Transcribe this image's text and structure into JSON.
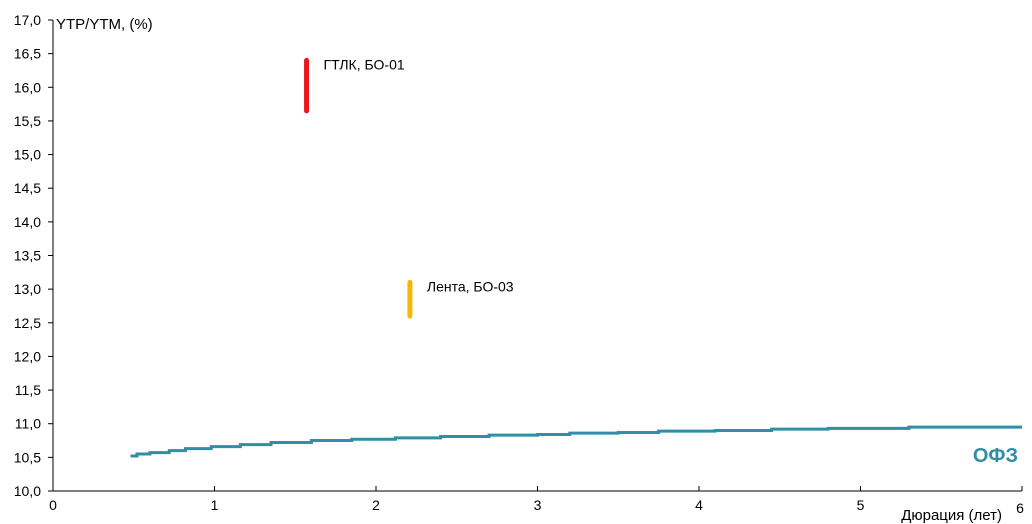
{
  "chart_data": {
    "type": "line",
    "title": "",
    "ylabel": "YTP/YTM, (%)",
    "xlabel": "Дюрация (лет)",
    "xlim": [
      0,
      6
    ],
    "ylim": [
      10.0,
      17.0
    ],
    "x_ticks": [
      "0",
      "1",
      "2",
      "3",
      "4",
      "5",
      "6"
    ],
    "y_ticks": [
      "10,0",
      "10,5",
      "11,0",
      "11,5",
      "12,0",
      "12,5",
      "13,0",
      "13,5",
      "14,0",
      "14,5",
      "15,0",
      "15,5",
      "16,0",
      "16,5",
      "17,0"
    ],
    "series": [
      {
        "name": "ОФЗ",
        "color": "#2f8fa6",
        "x": [
          0.48,
          0.52,
          0.6,
          0.72,
          0.82,
          0.98,
          1.16,
          1.35,
          1.6,
          1.85,
          2.12,
          2.4,
          2.7,
          3.0,
          3.2,
          3.5,
          3.75,
          4.1,
          4.45,
          4.8,
          5.05,
          5.3,
          5.6,
          6.0
        ],
        "y": [
          10.52,
          10.55,
          10.57,
          10.6,
          10.63,
          10.66,
          10.69,
          10.72,
          10.75,
          10.77,
          10.79,
          10.81,
          10.83,
          10.84,
          10.86,
          10.87,
          10.89,
          10.9,
          10.92,
          10.93,
          10.93,
          10.95,
          10.95,
          10.95
        ]
      }
    ],
    "ranges": [
      {
        "name": "ГТЛК, БО-01",
        "label": "ГТЛК, БО-01",
        "x": 1.57,
        "y_low": 15.65,
        "y_high": 16.4,
        "color": "#e8181c"
      },
      {
        "name": "Лента, БО-03",
        "label": "Лента, БО-03",
        "x": 2.21,
        "y_low": 12.6,
        "y_high": 13.1,
        "color": "#f5b800"
      }
    ],
    "grid": false
  }
}
